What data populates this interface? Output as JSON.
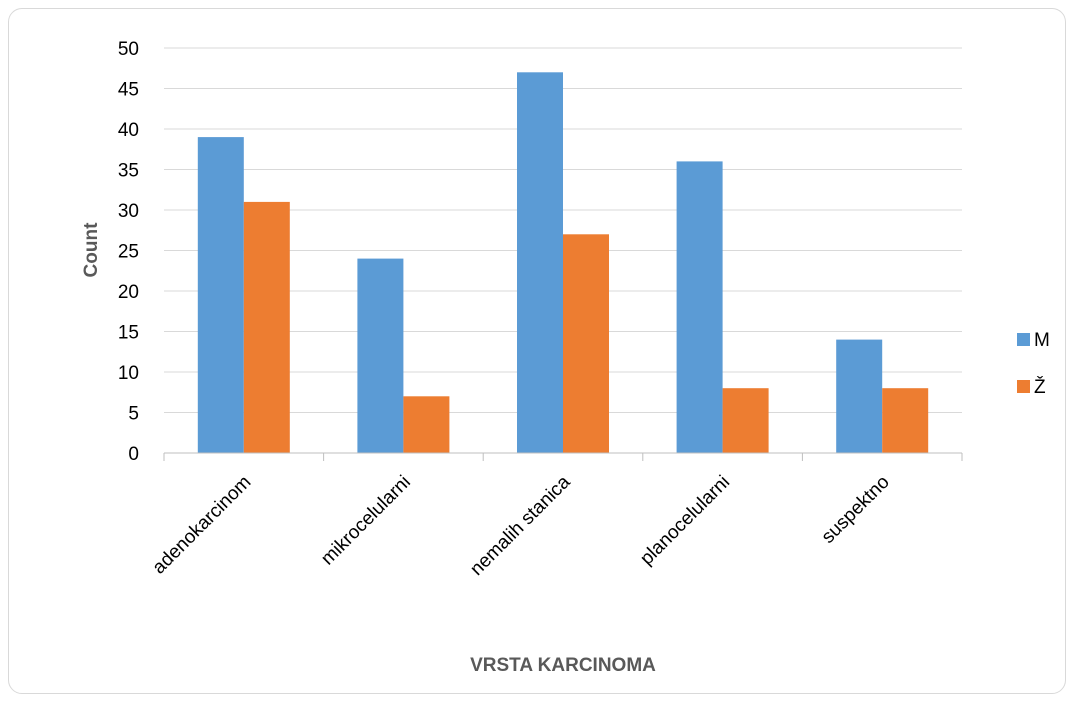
{
  "chart_data": {
    "type": "bar",
    "categories": [
      "adenokarcinom",
      "mikrocelularni",
      "nemalih stanica",
      "planocelularni",
      "suspektno"
    ],
    "series": [
      {
        "name": "M",
        "values": [
          39,
          24,
          47,
          36,
          14
        ],
        "color": "#5B9BD5"
      },
      {
        "name": "Ž",
        "values": [
          31,
          7,
          27,
          8,
          8
        ],
        "color": "#ED7D31"
      }
    ],
    "title": "",
    "xlabel": "VRSTA KARCINOMA",
    "ylabel": "Count",
    "ylim": [
      0,
      50
    ],
    "yticks": [
      "0",
      "5",
      "10",
      "15",
      "20",
      "25",
      "30",
      "35",
      "40",
      "45",
      "50"
    ],
    "grid": true,
    "legend_position": "right"
  }
}
